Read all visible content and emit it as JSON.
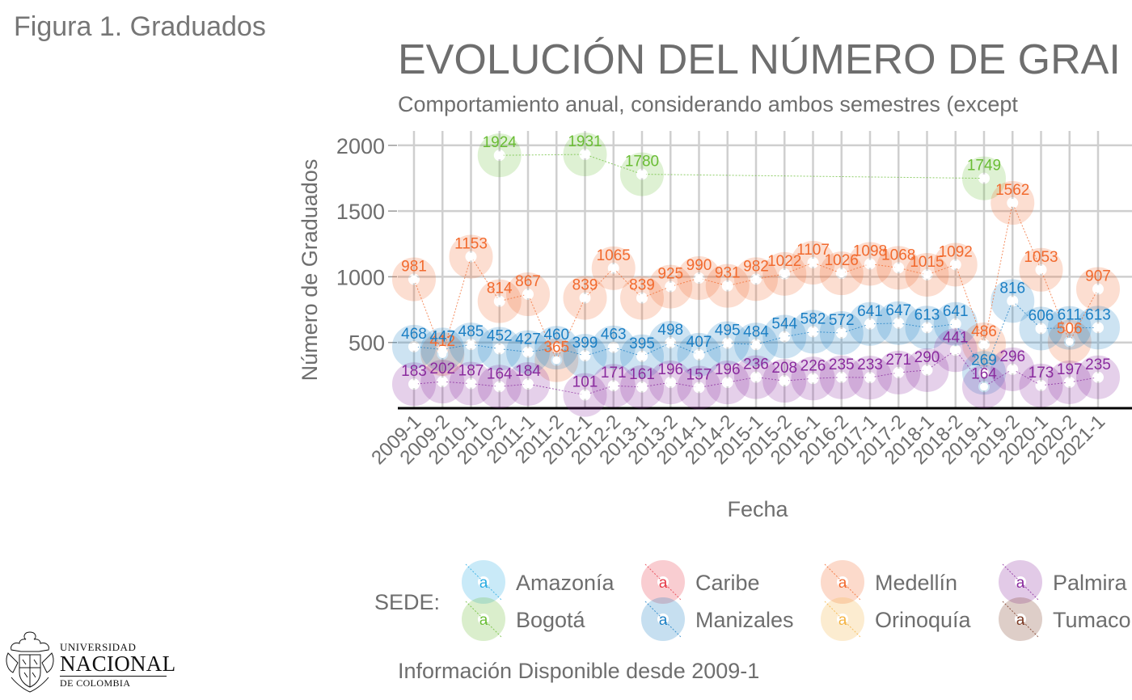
{
  "figure_label": "Figura 1. Graduados",
  "logo": {
    "line1": "UNIVERSIDAD",
    "line2": "NACIONAL",
    "line3": "DE COLOMBIA"
  },
  "chart_data": {
    "type": "line",
    "title": "EVOLUCIÓN DEL NÚMERO DE GRAI",
    "subtitle": "Comportamiento anual, considerando ambos semestres (except",
    "xlabel": "Fecha",
    "ylabel": "Número de Graduados",
    "caption": "Información Disponible desde 2009-1",
    "ylim": [
      0,
      2000
    ],
    "yticks": [
      "500",
      "1000",
      "1500",
      "2000"
    ],
    "grid": true,
    "categories": [
      "2009-1",
      "2009-2",
      "2010-1",
      "2010-2",
      "2011-1",
      "2011-2",
      "2012-1",
      "2012-2",
      "2013-1",
      "2013-2",
      "2014-1",
      "2014-2",
      "2015-1",
      "2015-2",
      "2016-1",
      "2016-2",
      "2017-1",
      "2017-2",
      "2018-1",
      "2018-2",
      "2019-1",
      "2019-2",
      "2020-1",
      "2020-2",
      "2021-1"
    ],
    "legend_title": "SEDE:",
    "legend_position": "bottom",
    "legend_symbol": "a",
    "legend": [
      {
        "name": "Amazonía",
        "color": "#29abe2"
      },
      {
        "name": "Caribe",
        "color": "#e63946"
      },
      {
        "name": "Medellín",
        "color": "#f26a2e"
      },
      {
        "name": "Palmira",
        "color": "#8a2b9e"
      },
      {
        "name": "Bogotá",
        "color": "#6abd35"
      },
      {
        "name": "Manizales",
        "color": "#1b7fc4"
      },
      {
        "name": "Orinoquía",
        "color": "#f4b342"
      },
      {
        "name": "Tumaco",
        "color": "#7b3a24"
      }
    ],
    "series": [
      {
        "name": "Bogotá",
        "color": "#6abd35",
        "x": [
          "2010-2",
          "2012-1",
          "2013-1",
          "2019-1"
        ],
        "values": [
          1924,
          1931,
          1780,
          1749
        ]
      },
      {
        "name": "Medellín",
        "color": "#f26a2e",
        "x": [
          "2009-1",
          "2009-2",
          "2010-1",
          "2010-2",
          "2011-1",
          "2011-2",
          "2012-1",
          "2012-2",
          "2013-1",
          "2013-2",
          "2014-1",
          "2014-2",
          "2015-1",
          "2015-2",
          "2016-1",
          "2016-2",
          "2017-1",
          "2017-2",
          "2018-1",
          "2018-2",
          "2019-1",
          "2019-2",
          "2020-1",
          "2020-2",
          "2021-1"
        ],
        "values": [
          981,
          412,
          1153,
          814,
          867,
          365,
          839,
          1065,
          839,
          925,
          990,
          931,
          982,
          1022,
          1107,
          1026,
          1098,
          1068,
          1015,
          1092,
          486,
          1562,
          1053,
          506,
          907
        ]
      },
      {
        "name": "Manizales",
        "color": "#1b7fc4",
        "x": [
          "2009-1",
          "2009-2",
          "2010-1",
          "2010-2",
          "2011-1",
          "2011-2",
          "2012-1",
          "2012-2",
          "2013-1",
          "2013-2",
          "2014-1",
          "2014-2",
          "2015-1",
          "2015-2",
          "2016-1",
          "2016-2",
          "2017-1",
          "2017-2",
          "2018-1",
          "2018-2",
          "2019-1",
          "2019-2",
          "2020-1",
          "2020-2",
          "2021-1"
        ],
        "values": [
          468,
          447,
          485,
          452,
          427,
          460,
          399,
          463,
          395,
          498,
          407,
          495,
          484,
          544,
          582,
          572,
          641,
          647,
          613,
          641,
          269,
          816,
          606,
          611,
          613
        ]
      },
      {
        "name": "Palmira",
        "color": "#8a2b9e",
        "x": [
          "2009-1",
          "2009-2",
          "2010-1",
          "2010-2",
          "2011-1",
          "2012-1",
          "2012-2",
          "2013-1",
          "2013-2",
          "2014-1",
          "2014-2",
          "2015-1",
          "2015-2",
          "2016-1",
          "2016-2",
          "2017-1",
          "2017-2",
          "2018-1",
          "2018-2",
          "2019-1",
          "2019-2",
          "2020-1",
          "2020-2",
          "2021-1"
        ],
        "values": [
          183,
          202,
          187,
          164,
          184,
          101,
          171,
          161,
          196,
          157,
          196,
          236,
          208,
          226,
          235,
          233,
          271,
          290,
          441,
          164,
          296,
          173,
          197,
          235
        ]
      }
    ]
  }
}
